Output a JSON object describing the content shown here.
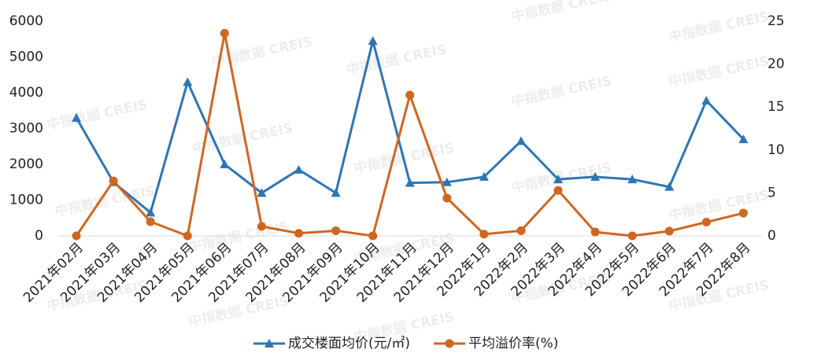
{
  "chart_data": {
    "type": "line",
    "watermark": "中指数据 CREIS",
    "categories": [
      "2021年02月",
      "2021年03月",
      "2021年04月",
      "2021年05月",
      "2021年06月",
      "2021年07月",
      "2021年08月",
      "2021年09月",
      "2021年10月",
      "2021年11月",
      "2021年12月",
      "2022年1月",
      "2022年2月",
      "2022年3月",
      "2022年4月",
      "2022年5月",
      "2022年6月",
      "2022年7月",
      "2022年8月"
    ],
    "series": [
      {
        "name": "成交楼面均价(元/㎡)",
        "color": "#2e75b6",
        "marker": "triangle",
        "values": [
          3300,
          1500,
          650,
          4300,
          2000,
          1200,
          1850,
          1200,
          5450,
          1480,
          1500,
          1650,
          2650,
          1580,
          1650,
          1580,
          1370,
          3780,
          2700
        ]
      },
      {
        "name": "平均溢价率(%)",
        "color": "#d0661f",
        "marker": "circle",
        "axis": "y2",
        "values": [
          0,
          6.4,
          1.65,
          0,
          23.6,
          1.1,
          0.3,
          0.6,
          0,
          16.4,
          4.4,
          0.2,
          0.6,
          5.3,
          0.45,
          0,
          0.55,
          1.6,
          2.65
        ]
      }
    ],
    "ylim": [
      0,
      6000
    ],
    "yticks": [
      0,
      1000,
      2000,
      3000,
      4000,
      5000,
      6000
    ],
    "y2lim": [
      0,
      25
    ],
    "y2ticks": [
      0,
      5,
      10,
      15,
      20,
      25
    ],
    "grid": false
  }
}
